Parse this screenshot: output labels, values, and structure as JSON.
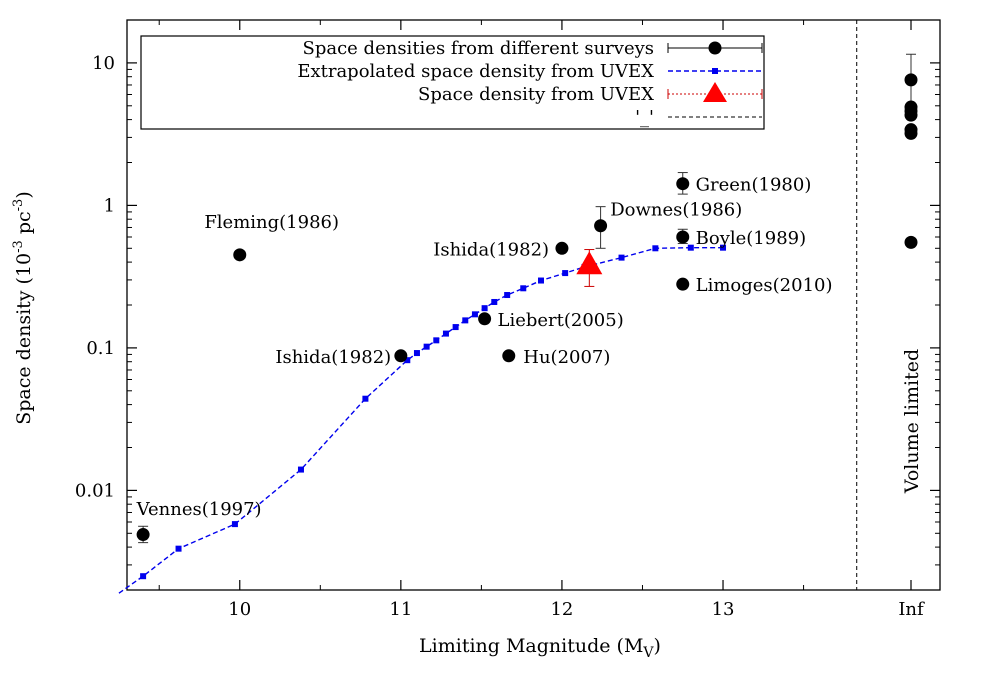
{
  "chart_data": {
    "type": "scatter",
    "xlabel": "Limiting Magnitude (M",
    "xlabel_sub": "V",
    "xlabel_end": ")",
    "ylabel": "Space density (10",
    "ylabel_sup1": "-3",
    "ylabel_mid": " pc",
    "ylabel_sup2": "-3",
    "ylabel_end": ")",
    "xlim": [
      9.3,
      13.9
    ],
    "ylim": [
      0.002,
      20
    ],
    "yscale": "log",
    "grid": false,
    "legend_position": "top-left",
    "x_ticks": [
      {
        "value": 10,
        "label": "10"
      },
      {
        "value": 11,
        "label": "11"
      },
      {
        "value": 12,
        "label": "12"
      },
      {
        "value": 13,
        "label": "13"
      }
    ],
    "inf_tick_label": "Inf",
    "y_ticks": [
      {
        "value": 0.01,
        "label": "0.01"
      },
      {
        "value": 0.1,
        "label": "0.1"
      },
      {
        "value": 1,
        "label": "1"
      },
      {
        "value": 10,
        "label": "10"
      }
    ],
    "volume_limited_label": "Volume limited",
    "volume_limited_x": 13.83,
    "series": [
      {
        "name": "Space densities from different surveys",
        "color": "#000000",
        "marker": "circle",
        "points": [
          {
            "x": 9.4,
            "y": 0.0049,
            "yerr": [
              0.0043,
              0.0056
            ]
          },
          {
            "x": 10.0,
            "y": 0.45
          },
          {
            "x": 11.0,
            "y": 0.088
          },
          {
            "x": 11.52,
            "y": 0.16
          },
          {
            "x": 11.67,
            "y": 0.088
          },
          {
            "x": 12.0,
            "y": 0.5
          },
          {
            "x": 12.24,
            "y": 0.72,
            "yerr": [
              0.5,
              0.98
            ]
          },
          {
            "x": 12.75,
            "y": 1.42,
            "yerr": [
              1.2,
              1.7
            ]
          },
          {
            "x": 12.75,
            "y": 0.6,
            "yerr": [
              0.54,
              0.68
            ]
          },
          {
            "x": 12.75,
            "y": 0.28
          }
        ],
        "inf_points": [
          {
            "y": 7.6,
            "yerr": [
              5.2,
              11.5
            ]
          },
          {
            "y": 4.9
          },
          {
            "y": 4.6
          },
          {
            "y": 4.3
          },
          {
            "y": 3.4
          },
          {
            "y": 3.2
          },
          {
            "y": 0.55
          }
        ]
      },
      {
        "name": "Extrapolated space density from UVEX",
        "color": "#0000ee",
        "marker": "square",
        "line": "dashed",
        "points": [
          {
            "x": 9.25,
            "y": 0.0019
          },
          {
            "x": 9.4,
            "y": 0.0025
          },
          {
            "x": 9.62,
            "y": 0.0039
          },
          {
            "x": 9.97,
            "y": 0.0058
          },
          {
            "x": 10.38,
            "y": 0.014
          },
          {
            "x": 10.78,
            "y": 0.044
          },
          {
            "x": 11.04,
            "y": 0.082
          },
          {
            "x": 11.1,
            "y": 0.092
          },
          {
            "x": 11.16,
            "y": 0.102
          },
          {
            "x": 11.22,
            "y": 0.113
          },
          {
            "x": 11.28,
            "y": 0.126
          },
          {
            "x": 11.34,
            "y": 0.14
          },
          {
            "x": 11.4,
            "y": 0.156
          },
          {
            "x": 11.46,
            "y": 0.172
          },
          {
            "x": 11.52,
            "y": 0.19
          },
          {
            "x": 11.58,
            "y": 0.21
          },
          {
            "x": 11.66,
            "y": 0.235
          },
          {
            "x": 11.76,
            "y": 0.262
          },
          {
            "x": 11.87,
            "y": 0.297
          },
          {
            "x": 12.02,
            "y": 0.335
          },
          {
            "x": 12.14,
            "y": 0.37
          },
          {
            "x": 12.37,
            "y": 0.43
          },
          {
            "x": 12.58,
            "y": 0.5
          },
          {
            "x": 12.8,
            "y": 0.505
          },
          {
            "x": 13.0,
            "y": 0.505
          }
        ]
      },
      {
        "name": "Space density from UVEX",
        "color": "#ff0000",
        "marker": "triangle",
        "points": [
          {
            "x": 12.17,
            "y": 0.38,
            "yerr": [
              0.27,
              0.49
            ]
          }
        ]
      },
      {
        "name": "'_'",
        "color": "#000000",
        "marker": "none",
        "line": "dashed"
      }
    ],
    "annotations": [
      {
        "text": "Vennes(1997)",
        "x": 9.36,
        "y": 0.0075,
        "anchor": "start"
      },
      {
        "text": "Fleming(1986)",
        "x": 9.78,
        "y": 0.78,
        "anchor": "start"
      },
      {
        "text": "Ishida(1982)",
        "x": 10.94,
        "y": 0.088,
        "anchor": "end"
      },
      {
        "text": "Liebert(2005)",
        "x": 11.6,
        "y": 0.16,
        "anchor": "start"
      },
      {
        "text": "Hu(2007)",
        "x": 11.76,
        "y": 0.088,
        "anchor": "start"
      },
      {
        "text": "Ishida(1982)",
        "x": 11.92,
        "y": 0.5,
        "anchor": "end"
      },
      {
        "text": "Downes(1986)",
        "x": 12.3,
        "y": 0.95,
        "anchor": "start"
      },
      {
        "text": "Green(1980)",
        "x": 12.83,
        "y": 1.42,
        "anchor": "start"
      },
      {
        "text": "Boyle(1989)",
        "x": 12.83,
        "y": 0.6,
        "anchor": "start"
      },
      {
        "text": "Limoges(2010)",
        "x": 12.83,
        "y": 0.28,
        "anchor": "start"
      }
    ]
  }
}
